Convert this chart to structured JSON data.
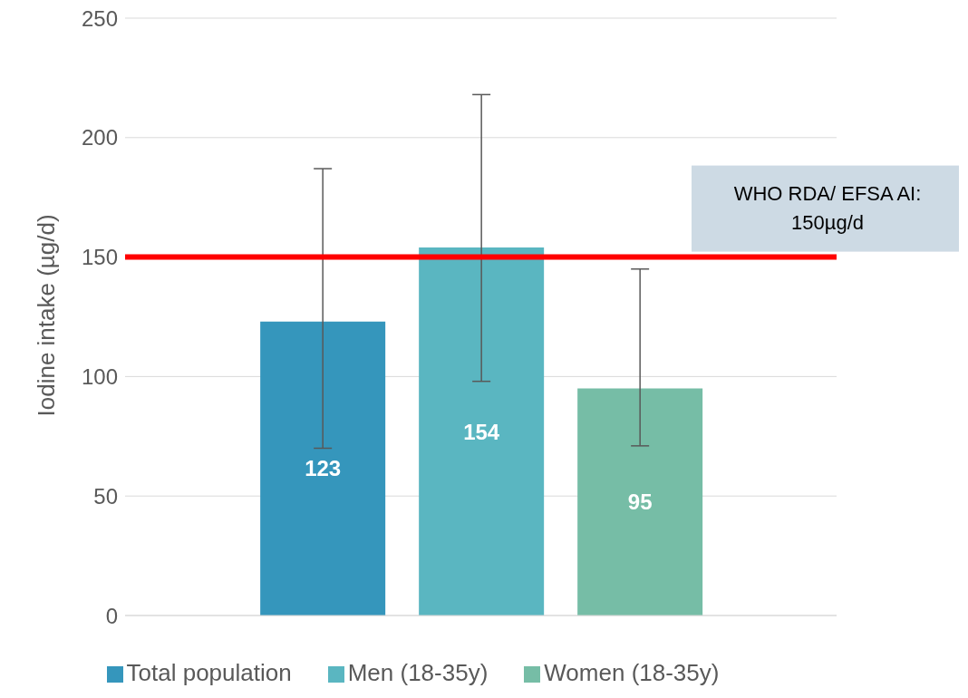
{
  "chart_data": {
    "type": "bar",
    "ylabel": "Iodine intake (µg/d)",
    "categories": [
      null
    ],
    "series": [
      {
        "name": "Total population",
        "color": "#3596bc",
        "values": [
          123
        ],
        "errors": [
          [
            70,
            187
          ]
        ]
      },
      {
        "name": "Men (18-35y)",
        "color": "#5ab6c1",
        "values": [
          154
        ],
        "errors": [
          [
            98,
            218
          ]
        ]
      },
      {
        "name": "Women (18-35y)",
        "color": "#76bda6",
        "values": [
          95
        ],
        "errors": [
          [
            71,
            145
          ]
        ]
      }
    ],
    "ylim": [
      0,
      250
    ],
    "yticks": [
      0,
      50,
      100,
      150,
      200,
      250
    ],
    "grid": "y",
    "legend": "bottom",
    "data_labels": true,
    "ref_lines": [
      {
        "axis": "y",
        "value": 150,
        "label": "WHO RDA/ EFSA AI:\n150µg/d",
        "color": "#ff0000"
      }
    ]
  }
}
